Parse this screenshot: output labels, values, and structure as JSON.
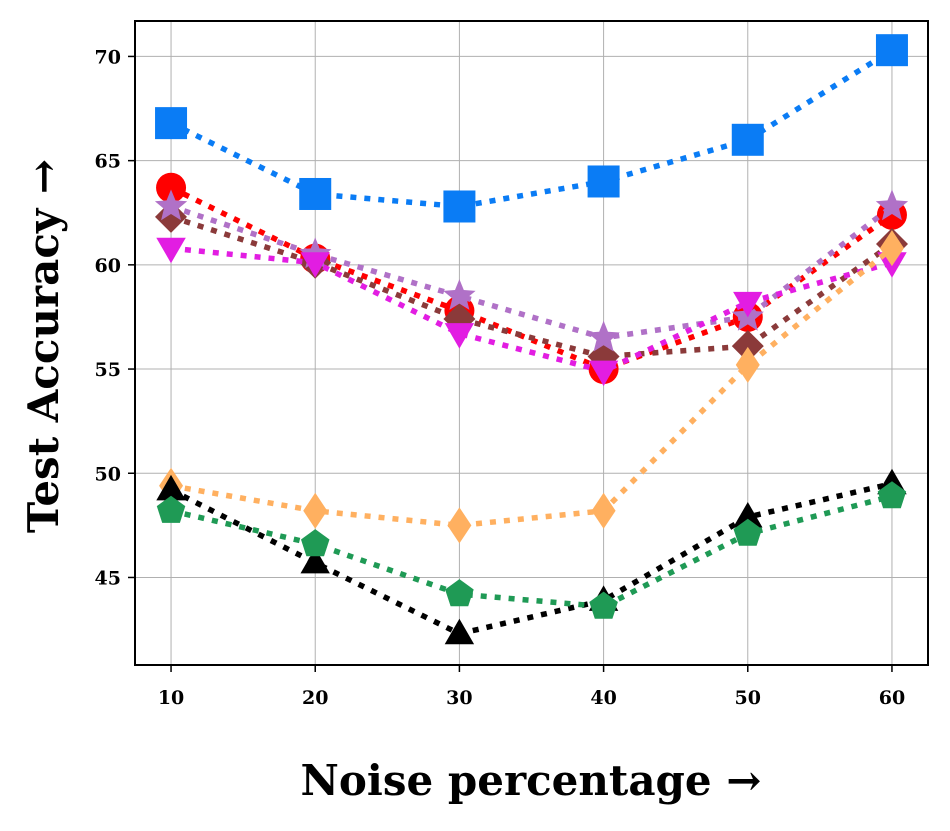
{
  "chart_data": {
    "type": "line",
    "title": "",
    "xlabel": "Noise percentage →",
    "ylabel": "Test Accuracy →",
    "x": [
      10,
      20,
      30,
      40,
      50,
      60
    ],
    "xticks": [
      "10",
      "20",
      "30",
      "40",
      "50",
      "60"
    ],
    "yticks": [
      "45",
      "50",
      "55",
      "60",
      "65",
      "70"
    ],
    "xlim": [
      7.5,
      62.5
    ],
    "ylim": [
      40.8,
      71.7
    ],
    "grid": true,
    "legend": "none",
    "series": [
      {
        "name": "blue-squares",
        "color": "#0a7cf5",
        "marker": "square",
        "values": [
          66.8,
          63.4,
          62.8,
          64.0,
          66.0,
          70.3
        ]
      },
      {
        "name": "red-circles",
        "color": "#ff0000",
        "marker": "circle",
        "values": [
          63.7,
          60.3,
          57.8,
          55.0,
          57.5,
          62.4
        ]
      },
      {
        "name": "brown-diamonds",
        "color": "#8b3a3a",
        "marker": "diamond",
        "values": [
          62.3,
          60.1,
          57.4,
          55.6,
          56.1,
          61.0
        ]
      },
      {
        "name": "purple-stars",
        "color": "#b071c7",
        "marker": "star",
        "values": [
          62.8,
          60.5,
          58.5,
          56.5,
          57.5,
          62.8
        ]
      },
      {
        "name": "magenta-triangles-down",
        "color": "#e21de2",
        "marker": "triangle-down",
        "values": [
          60.8,
          60.1,
          56.7,
          54.9,
          58.2,
          60.1
        ]
      },
      {
        "name": "orange-thin-diamonds",
        "color": "#ffb060",
        "marker": "thin-diamond",
        "values": [
          49.4,
          48.2,
          47.5,
          48.2,
          55.2,
          60.8
        ]
      },
      {
        "name": "black-triangles-up",
        "color": "#000000",
        "marker": "triangle-up",
        "values": [
          49.2,
          45.7,
          42.3,
          43.9,
          47.9,
          49.5
        ]
      },
      {
        "name": "green-pentagons",
        "color": "#1f9a55",
        "marker": "pentagon",
        "values": [
          48.2,
          46.6,
          44.2,
          43.6,
          47.1,
          48.9
        ]
      }
    ]
  }
}
